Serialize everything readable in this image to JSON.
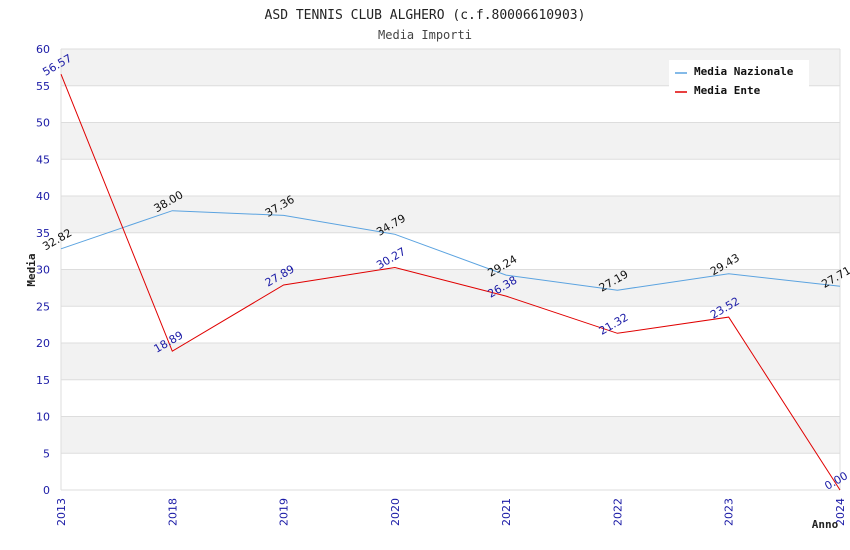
{
  "chart_data": {
    "type": "line",
    "title": "ASD TENNIS CLUB ALGHERO (c.f.80006610903)",
    "subtitle": "Media Importi",
    "xlabel": "Anno",
    "ylabel": "Media",
    "ylim": [
      0,
      60
    ],
    "yticks": [
      "0",
      "5",
      "10",
      "15",
      "20",
      "25",
      "30",
      "35",
      "40",
      "45",
      "50",
      "55",
      "60"
    ],
    "categories": [
      "2013",
      "2018",
      "2019",
      "2020",
      "2021",
      "2022",
      "2023",
      "2024"
    ],
    "grid": true,
    "legend_position": "top-right",
    "series": [
      {
        "name": "Media Nazionale",
        "color": "#5ba3e0",
        "label_color": "#111111",
        "values": [
          32.82,
          38.0,
          37.36,
          34.79,
          29.24,
          27.19,
          29.43,
          27.71
        ],
        "labels": [
          "32.82",
          "38.00",
          "37.36",
          "34.79",
          "29.24",
          "27.19",
          "29.43",
          "27.71"
        ]
      },
      {
        "name": "Media Ente",
        "color": "#e00000",
        "label_color": "#1a1aa6",
        "values": [
          56.57,
          18.89,
          27.89,
          30.27,
          26.38,
          21.32,
          23.52,
          0.0
        ],
        "labels": [
          "56.57",
          "18.89",
          "27.89",
          "30.27",
          "26.38",
          "21.32",
          "23.52",
          "0.00"
        ]
      }
    ]
  }
}
